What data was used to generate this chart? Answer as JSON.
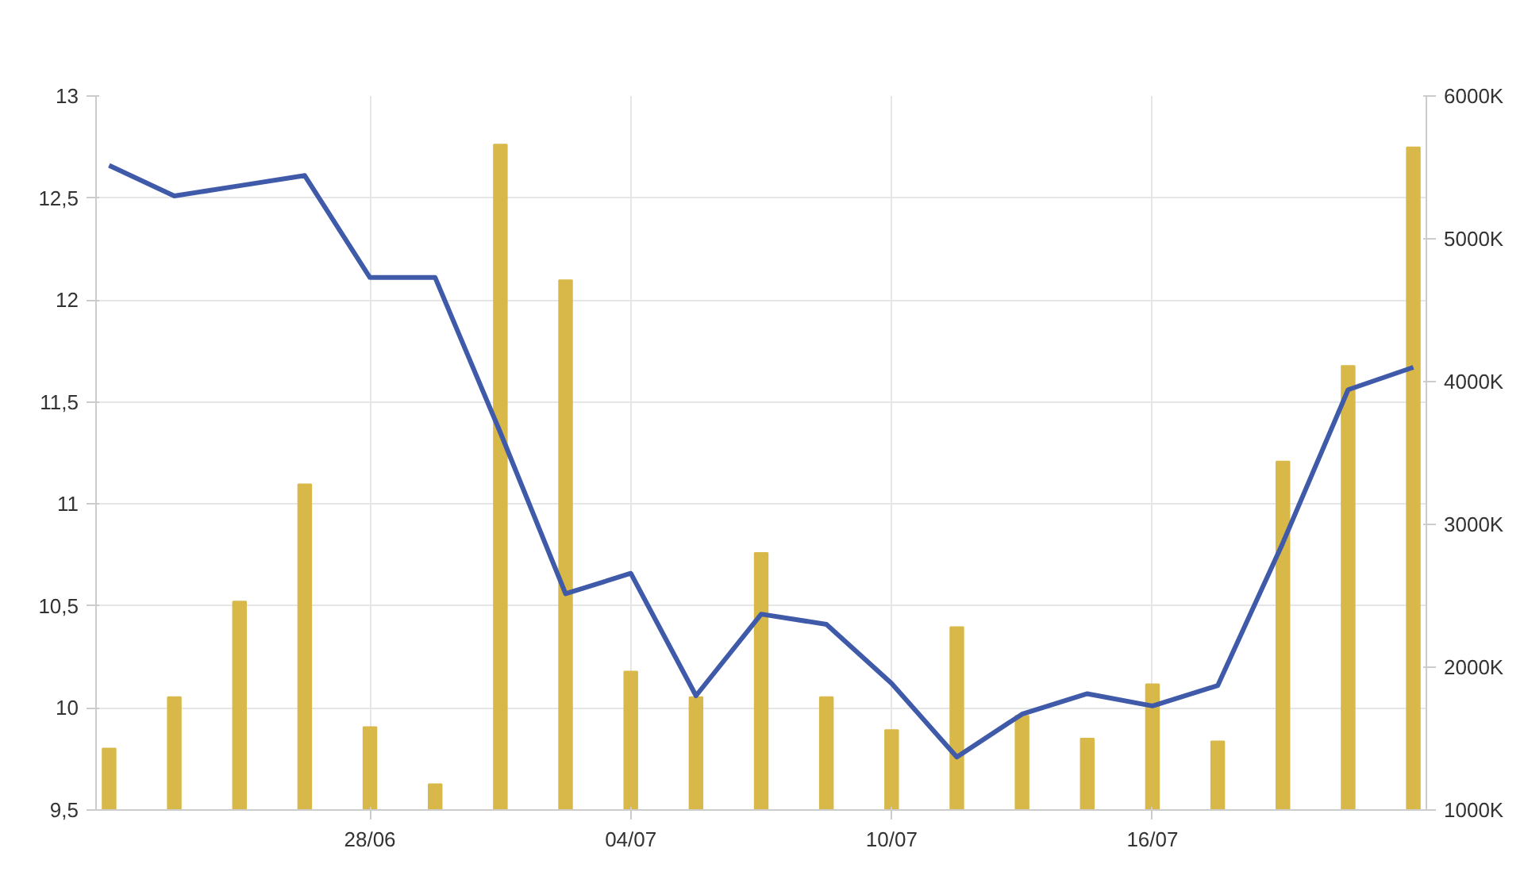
{
  "chart_data": {
    "type": "line",
    "categories": [
      null,
      null,
      null,
      null,
      "28/06",
      null,
      null,
      null,
      "04/07",
      null,
      null,
      null,
      "10/07",
      null,
      null,
      null,
      "16/07",
      null,
      null,
      null,
      null
    ],
    "series": [
      {
        "type": "bar",
        "axis": "y2",
        "color": "#d9b84a",
        "values": [
          1430,
          1790,
          2460,
          3280,
          1580,
          1180,
          5660,
          4710,
          1970,
          1790,
          2800,
          1790,
          1560,
          2280,
          1660,
          1500,
          1880,
          1480,
          3440,
          4110,
          5640
        ]
      },
      {
        "color": "#3f5aa8",
        "values": [
          12.66,
          12.51,
          12.56,
          12.61,
          12.11,
          12.11,
          11.35,
          10.56,
          10.66,
          10.06,
          10.46,
          10.41,
          10.12,
          9.76,
          9.97,
          10.07,
          10.01,
          10.11,
          10.81,
          11.56,
          11.67
        ]
      }
    ],
    "ylim": [
      9.5,
      13
    ],
    "yticks": [
      {
        "value": 9.5,
        "label": "9,5"
      },
      {
        "value": 10,
        "label": "10"
      },
      {
        "value": 10.5,
        "label": "10,5"
      },
      {
        "value": 11,
        "label": "11"
      },
      {
        "value": 11.5,
        "label": "11,5"
      },
      {
        "value": 12,
        "label": "12"
      },
      {
        "value": 12.5,
        "label": "12,5"
      },
      {
        "value": 13,
        "label": "13"
      }
    ],
    "y2lim": [
      1000,
      6000
    ],
    "y2ticks": [
      {
        "value": 1000,
        "label": "1000K"
      },
      {
        "value": 2000,
        "label": "2000K"
      },
      {
        "value": 3000,
        "label": "3000K"
      },
      {
        "value": 4000,
        "label": "4000K"
      },
      {
        "value": 5000,
        "label": "5000K"
      },
      {
        "value": 6000,
        "label": "6000K"
      }
    ],
    "grid": true,
    "line_style": "solid"
  }
}
